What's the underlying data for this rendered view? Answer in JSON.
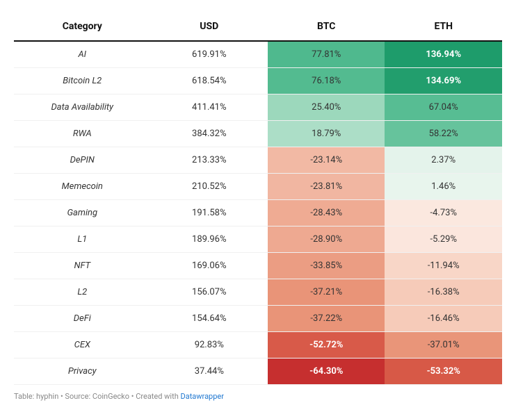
{
  "table": {
    "columns": [
      "Category",
      "USD",
      "BTC",
      "ETH"
    ],
    "rows": [
      {
        "category": "AI",
        "usd": "619.91%",
        "btc": {
          "text": "77.81%",
          "bg": "#4fb98e",
          "bold": false,
          "white": false
        },
        "eth": {
          "text": "136.94%",
          "bg": "#1e9c6b",
          "bold": true,
          "white": true
        }
      },
      {
        "category": "Bitcoin L2",
        "usd": "618.54%",
        "btc": {
          "text": "76.18%",
          "bg": "#53bb90",
          "bold": false,
          "white": false
        },
        "eth": {
          "text": "134.69%",
          "bg": "#229e6d",
          "bold": true,
          "white": true
        }
      },
      {
        "category": "Data Availability",
        "usd": "411.41%",
        "btc": {
          "text": "25.40%",
          "bg": "#9cd8bc",
          "bold": false,
          "white": false
        },
        "eth": {
          "text": "67.04%",
          "bg": "#57bd93",
          "bold": false,
          "white": false
        }
      },
      {
        "category": "RWA",
        "usd": "384.32%",
        "btc": {
          "text": "18.79%",
          "bg": "#acdec7",
          "bold": false,
          "white": false
        },
        "eth": {
          "text": "58.22%",
          "bg": "#66c39c",
          "bold": false,
          "white": false
        }
      },
      {
        "category": "DePIN",
        "usd": "213.33%",
        "btc": {
          "text": "-23.14%",
          "bg": "#f2b9a4",
          "bold": false,
          "white": false
        },
        "eth": {
          "text": "2.37%",
          "bg": "#e4f3eb",
          "bold": false,
          "white": false
        }
      },
      {
        "category": "Memecoin",
        "usd": "210.52%",
        "btc": {
          "text": "-23.81%",
          "bg": "#f1b6a1",
          "bold": false,
          "white": false
        },
        "eth": {
          "text": "1.46%",
          "bg": "#e8f5ed",
          "bold": false,
          "white": false
        }
      },
      {
        "category": "Gaming",
        "usd": "191.58%",
        "btc": {
          "text": "-28.43%",
          "bg": "#efab93",
          "bold": false,
          "white": false
        },
        "eth": {
          "text": "-4.73%",
          "bg": "#fbe8df",
          "bold": false,
          "white": false
        }
      },
      {
        "category": "L1",
        "usd": "189.96%",
        "btc": {
          "text": "-28.90%",
          "bg": "#eea991",
          "bold": false,
          "white": false
        },
        "eth": {
          "text": "-5.29%",
          "bg": "#fbe6dd",
          "bold": false,
          "white": false
        }
      },
      {
        "category": "NFT",
        "usd": "169.06%",
        "btc": {
          "text": "-33.85%",
          "bg": "#eb9d83",
          "bold": false,
          "white": false
        },
        "eth": {
          "text": "-11.94%",
          "bg": "#f8d6c7",
          "bold": false,
          "white": false
        }
      },
      {
        "category": "L2",
        "usd": "156.07%",
        "btc": {
          "text": "-37.21%",
          "bg": "#e99478",
          "bold": false,
          "white": false
        },
        "eth": {
          "text": "-16.38%",
          "bg": "#f6cbb9",
          "bold": false,
          "white": false
        }
      },
      {
        "category": "DeFi",
        "usd": "154.64%",
        "btc": {
          "text": "-37.22%",
          "bg": "#e99478",
          "bold": false,
          "white": false
        },
        "eth": {
          "text": "-16.46%",
          "bg": "#f6cbb9",
          "bold": false,
          "white": false
        }
      },
      {
        "category": "CEX",
        "usd": "92.83%",
        "btc": {
          "text": "-52.72%",
          "bg": "#d85a49",
          "bold": true,
          "white": true
        },
        "eth": {
          "text": "-37.01%",
          "bg": "#e99579",
          "bold": false,
          "white": false
        }
      },
      {
        "category": "Privacy",
        "usd": "37.44%",
        "btc": {
          "text": "-64.30%",
          "bg": "#c62f2f",
          "bold": true,
          "white": true
        },
        "eth": {
          "text": "-53.32%",
          "bg": "#d75947",
          "bold": true,
          "white": true
        }
      }
    ],
    "header_border_color": "#111111",
    "row_border_color": "#f0f0f0",
    "header_fontsize": 14,
    "cell_fontsize": 13,
    "background_color": "#ffffff"
  },
  "credit": {
    "prefix": "Table: hyphin • Source: CoinGecko • Created with ",
    "link_text": "Datawrapper",
    "text_color": "#888888",
    "link_color": "#1f77d0"
  }
}
